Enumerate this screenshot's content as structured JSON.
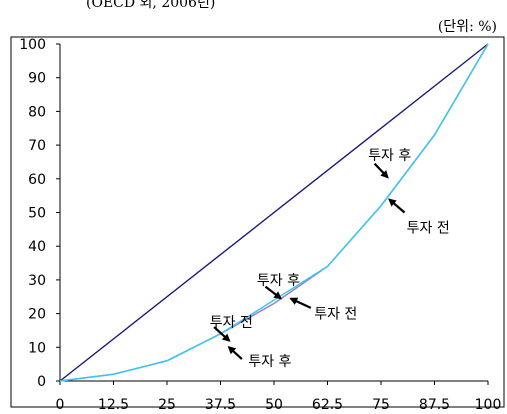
{
  "header": {
    "top_cut_text": "(OECD 외, 2006년)",
    "unit": "(단위: %)"
  },
  "chart_data": {
    "type": "line",
    "title": "",
    "xlabel": "",
    "ylabel": "",
    "xlim": [
      0,
      100
    ],
    "ylim": [
      0,
      100
    ],
    "x_ticks": [
      "0",
      "12.5",
      "25",
      "37.5",
      "50",
      "62.5",
      "75",
      "87.5",
      "100"
    ],
    "y_ticks": [
      "0",
      "10",
      "20",
      "30",
      "40",
      "50",
      "60",
      "70",
      "80",
      "90",
      "100"
    ],
    "grid": false,
    "legend": "none",
    "series": [
      {
        "id": "equality",
        "color": "#1a1a7a",
        "x": [
          0,
          100
        ],
        "y": [
          0,
          100
        ]
      },
      {
        "id": "before",
        "color": "#9a7fd0",
        "x": [
          0,
          12.5,
          25,
          37.5,
          50,
          62.5,
          75,
          87.5,
          100
        ],
        "y": [
          0,
          2,
          6,
          14,
          23,
          34,
          52,
          73,
          100
        ]
      },
      {
        "id": "after",
        "color": "#3cc8ee",
        "x": [
          0,
          12.5,
          25,
          37.5,
          50,
          62.5,
          75,
          87.5,
          100
        ],
        "y": [
          0,
          2,
          6,
          14,
          24,
          34,
          52,
          73,
          100
        ]
      }
    ],
    "annotations": [
      {
        "id": "after-lower",
        "text": "투자 후",
        "arrow_to": [
          39.5,
          10
        ],
        "arrow_from": [
          42.5,
          6.5
        ],
        "text_at": [
          44,
          6
        ]
      },
      {
        "id": "before-lower",
        "text": "투자 전",
        "arrow_to": [
          39.5,
          12
        ],
        "arrow_from": [
          36,
          16
        ],
        "text_at": [
          35,
          17.5
        ]
      },
      {
        "id": "after-mid",
        "text": "투자 후",
        "arrow_to": [
          51.5,
          24.6
        ],
        "arrow_from": [
          48,
          28
        ],
        "text_at": [
          46,
          30
        ]
      },
      {
        "id": "before-mid",
        "text": "투자 전",
        "arrow_to": [
          54,
          24.4
        ],
        "arrow_from": [
          58.6,
          21.7
        ],
        "text_at": [
          59.4,
          20
        ]
      },
      {
        "id": "after-upper",
        "text": "투자 후",
        "arrow_to": [
          76.5,
          60.5
        ],
        "arrow_from": [
          73.5,
          64.5
        ],
        "text_at": [
          72,
          67
        ]
      },
      {
        "id": "before-upper",
        "text": "투자 전",
        "arrow_to": [
          77,
          53.8
        ],
        "arrow_from": [
          80.5,
          50
        ],
        "text_at": [
          81,
          45.5
        ]
      }
    ]
  }
}
